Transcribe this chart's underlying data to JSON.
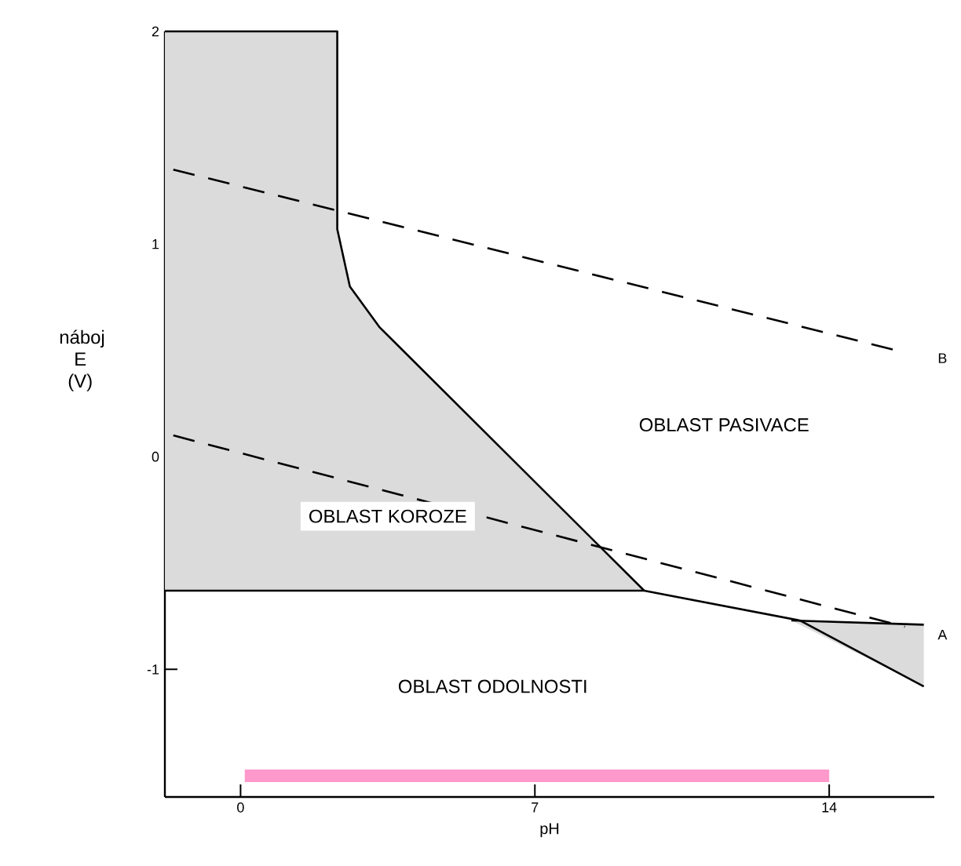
{
  "chart_data": {
    "type": "line",
    "xlabel": "pH",
    "ylabel": "náboj E (V)",
    "xlim": [
      -1.8,
      16.5
    ],
    "ylim": [
      -1.6,
      2
    ],
    "xticks": [
      0,
      7,
      14
    ],
    "yticks": [
      -1,
      0,
      1,
      2
    ],
    "series": [
      {
        "color": "#000000",
        "line_style": "solid",
        "x": [
          -1.8,
          2.3,
          2.3,
          2.6,
          3.3,
          9.6
        ],
        "values": [
          2,
          2,
          1.07,
          0.8,
          0.61,
          -0.63
        ],
        "lower": [
          -0.63,
          -0.63,
          -0.63,
          -0.63,
          -0.63,
          -0.63
        ],
        "upper": [
          2,
          2,
          1.07,
          0.8,
          0.61,
          -0.63
        ]
      },
      {
        "color": "#000000",
        "line_style": "solid",
        "x": [
          13.1,
          16.25
        ],
        "values": [
          -0.77,
          -0.79
        ],
        "lower": [
          -0.77,
          -1.08
        ],
        "upper": [
          -0.77,
          -0.79
        ]
      },
      {
        "color": "#000000",
        "line_style": "solid",
        "x": [
          -1.8,
          9.6,
          13.3,
          16.25
        ],
        "values": [
          -0.63,
          -0.63,
          -0.77,
          -1.08
        ]
      },
      {
        "name": "B",
        "color": "#000000",
        "line_style": "dashed",
        "x": [
          -1.6,
          15.6
        ],
        "values": [
          1.35,
          0.5
        ]
      },
      {
        "name": "A",
        "color": "#000000",
        "line_style": "dashed",
        "x": [
          -1.6,
          15.8
        ],
        "values": [
          0.1,
          -0.8
        ]
      },
      {
        "color": "#ff99cc",
        "line_style": "solid",
        "x": [
          0.1,
          14
        ],
        "values": [
          -1.5,
          -1.5
        ]
      }
    ],
    "annotations": [
      "OBLAST PASIVACE",
      "OBLAST KOROZE",
      "OBLAST ODOLNOSTI"
    ]
  }
}
